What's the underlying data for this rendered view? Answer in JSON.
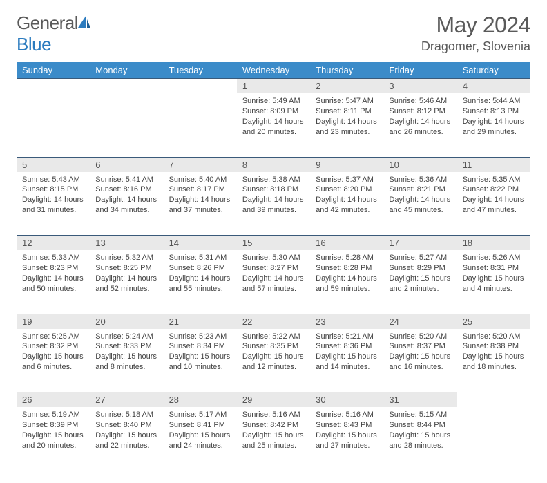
{
  "brand": {
    "part1": "General",
    "part2": "Blue"
  },
  "title": "May 2024",
  "location": "Dragomer, Slovenia",
  "colors": {
    "header_bg": "#3b8bc9",
    "header_text": "#ffffff",
    "daynum_bg": "#e9e9e9",
    "rule": "#3a5a7a",
    "text": "#444444",
    "brand_gray": "#5a5a5a",
    "brand_blue": "#2b7bbf"
  },
  "weekdays": [
    "Sunday",
    "Monday",
    "Tuesday",
    "Wednesday",
    "Thursday",
    "Friday",
    "Saturday"
  ],
  "weeks": [
    {
      "nums": [
        "",
        "",
        "",
        "1",
        "2",
        "3",
        "4"
      ],
      "cells": [
        "",
        "",
        "",
        "Sunrise: 5:49 AM\nSunset: 8:09 PM\nDaylight: 14 hours and 20 minutes.",
        "Sunrise: 5:47 AM\nSunset: 8:11 PM\nDaylight: 14 hours and 23 minutes.",
        "Sunrise: 5:46 AM\nSunset: 8:12 PM\nDaylight: 14 hours and 26 minutes.",
        "Sunrise: 5:44 AM\nSunset: 8:13 PM\nDaylight: 14 hours and 29 minutes."
      ]
    },
    {
      "nums": [
        "5",
        "6",
        "7",
        "8",
        "9",
        "10",
        "11"
      ],
      "cells": [
        "Sunrise: 5:43 AM\nSunset: 8:15 PM\nDaylight: 14 hours and 31 minutes.",
        "Sunrise: 5:41 AM\nSunset: 8:16 PM\nDaylight: 14 hours and 34 minutes.",
        "Sunrise: 5:40 AM\nSunset: 8:17 PM\nDaylight: 14 hours and 37 minutes.",
        "Sunrise: 5:38 AM\nSunset: 8:18 PM\nDaylight: 14 hours and 39 minutes.",
        "Sunrise: 5:37 AM\nSunset: 8:20 PM\nDaylight: 14 hours and 42 minutes.",
        "Sunrise: 5:36 AM\nSunset: 8:21 PM\nDaylight: 14 hours and 45 minutes.",
        "Sunrise: 5:35 AM\nSunset: 8:22 PM\nDaylight: 14 hours and 47 minutes."
      ]
    },
    {
      "nums": [
        "12",
        "13",
        "14",
        "15",
        "16",
        "17",
        "18"
      ],
      "cells": [
        "Sunrise: 5:33 AM\nSunset: 8:23 PM\nDaylight: 14 hours and 50 minutes.",
        "Sunrise: 5:32 AM\nSunset: 8:25 PM\nDaylight: 14 hours and 52 minutes.",
        "Sunrise: 5:31 AM\nSunset: 8:26 PM\nDaylight: 14 hours and 55 minutes.",
        "Sunrise: 5:30 AM\nSunset: 8:27 PM\nDaylight: 14 hours and 57 minutes.",
        "Sunrise: 5:28 AM\nSunset: 8:28 PM\nDaylight: 14 hours and 59 minutes.",
        "Sunrise: 5:27 AM\nSunset: 8:29 PM\nDaylight: 15 hours and 2 minutes.",
        "Sunrise: 5:26 AM\nSunset: 8:31 PM\nDaylight: 15 hours and 4 minutes."
      ]
    },
    {
      "nums": [
        "19",
        "20",
        "21",
        "22",
        "23",
        "24",
        "25"
      ],
      "cells": [
        "Sunrise: 5:25 AM\nSunset: 8:32 PM\nDaylight: 15 hours and 6 minutes.",
        "Sunrise: 5:24 AM\nSunset: 8:33 PM\nDaylight: 15 hours and 8 minutes.",
        "Sunrise: 5:23 AM\nSunset: 8:34 PM\nDaylight: 15 hours and 10 minutes.",
        "Sunrise: 5:22 AM\nSunset: 8:35 PM\nDaylight: 15 hours and 12 minutes.",
        "Sunrise: 5:21 AM\nSunset: 8:36 PM\nDaylight: 15 hours and 14 minutes.",
        "Sunrise: 5:20 AM\nSunset: 8:37 PM\nDaylight: 15 hours and 16 minutes.",
        "Sunrise: 5:20 AM\nSunset: 8:38 PM\nDaylight: 15 hours and 18 minutes."
      ]
    },
    {
      "nums": [
        "26",
        "27",
        "28",
        "29",
        "30",
        "31",
        ""
      ],
      "cells": [
        "Sunrise: 5:19 AM\nSunset: 8:39 PM\nDaylight: 15 hours and 20 minutes.",
        "Sunrise: 5:18 AM\nSunset: 8:40 PM\nDaylight: 15 hours and 22 minutes.",
        "Sunrise: 5:17 AM\nSunset: 8:41 PM\nDaylight: 15 hours and 24 minutes.",
        "Sunrise: 5:16 AM\nSunset: 8:42 PM\nDaylight: 15 hours and 25 minutes.",
        "Sunrise: 5:16 AM\nSunset: 8:43 PM\nDaylight: 15 hours and 27 minutes.",
        "Sunrise: 5:15 AM\nSunset: 8:44 PM\nDaylight: 15 hours and 28 minutes.",
        ""
      ]
    }
  ]
}
